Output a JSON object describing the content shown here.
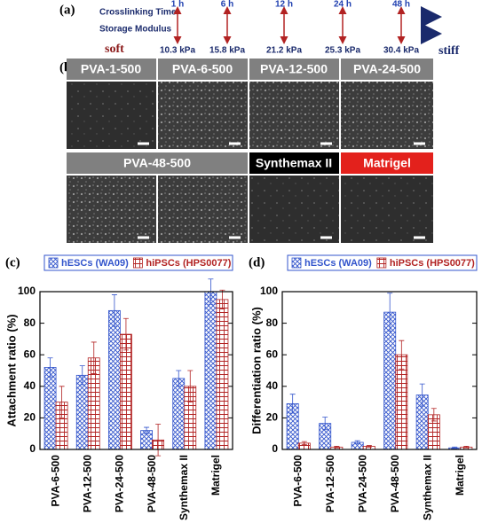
{
  "panel_labels": [
    "(a)",
    "(b)",
    "(c)",
    "(d)"
  ],
  "timeline": {
    "row_labels": [
      "Crosslinking Time",
      "Storage Modulus"
    ],
    "times": [
      "1 h",
      "6 h",
      "12 h",
      "24 h",
      "48 h"
    ],
    "moduli": [
      "10.3 kPa",
      "15.8 kPa",
      "21.2 kPa",
      "25.3 kPa",
      "30.4 kPa"
    ],
    "soft": "soft",
    "stiff": "stiff"
  },
  "images": {
    "labels": [
      "PVA-1-500",
      "PVA-6-500",
      "PVA-12-500",
      "PVA-24-500",
      "PVA-48-500",
      "Synthemax II",
      "Matrigel"
    ]
  },
  "chart_data": [
    {
      "type": "bar",
      "ylabel": "Attachment ratio (%)",
      "categories": [
        "PVA-6-500",
        "PVA-12-500",
        "PVA-24-500",
        "PVA-48-500",
        "Synthemax II",
        "Matrigel"
      ],
      "series": [
        {
          "name": "hESCs (WA09)",
          "color": "#3355cc",
          "hatch": "cross",
          "values": [
            52,
            47,
            88,
            12,
            45,
            100
          ],
          "errors": [
            6,
            6,
            10,
            2,
            5,
            8
          ]
        },
        {
          "name": "hiPSCs (HPS0077)",
          "color": "#b22222",
          "hatch": "grid",
          "values": [
            30,
            58,
            73,
            6,
            40,
            95
          ],
          "errors": [
            10,
            10,
            10,
            10,
            10,
            6
          ]
        }
      ],
      "ylim": [
        0,
        100
      ],
      "yticks": [
        0,
        20,
        40,
        60,
        80,
        100
      ]
    },
    {
      "type": "bar",
      "ylabel": "Differentiation ratio (%)",
      "categories": [
        "PVA-6-500",
        "PVA-12-500",
        "PVA-24-500",
        "PVA-48-500",
        "Synthemax II",
        "Matrigel"
      ],
      "series": [
        {
          "name": "hESCs (WA09)",
          "color": "#3355cc",
          "hatch": "cross",
          "values": [
            29,
            16.5,
            4.5,
            87,
            34.5,
            1
          ],
          "errors": [
            6,
            4,
            1,
            12,
            7,
            0.5
          ]
        },
        {
          "name": "hiPSCs (HPS0077)",
          "color": "#b22222",
          "hatch": "grid",
          "values": [
            4,
            1.5,
            2,
            60,
            22,
            1.5
          ],
          "errors": [
            1,
            0.5,
            0.5,
            9,
            4,
            0.5
          ]
        }
      ],
      "ylim": [
        0,
        100
      ],
      "yticks": [
        0,
        20,
        40,
        60,
        80,
        100
      ]
    }
  ]
}
